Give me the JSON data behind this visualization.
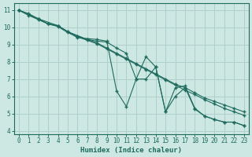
{
  "xlabel": "Humidex (Indice chaleur)",
  "bg_color": "#cde8e2",
  "grid_color": "#aecfca",
  "line_color": "#1e6b5e",
  "xlim": [
    -0.5,
    23.5
  ],
  "ylim": [
    3.8,
    11.4
  ],
  "xticks": [
    0,
    1,
    2,
    3,
    4,
    5,
    6,
    7,
    8,
    9,
    10,
    11,
    12,
    13,
    14,
    15,
    16,
    17,
    18,
    19,
    20,
    21,
    22,
    23
  ],
  "yticks": [
    4,
    5,
    6,
    7,
    8,
    9,
    10,
    11
  ],
  "lines": [
    {
      "x": [
        0,
        1,
        2,
        3,
        4,
        5,
        6,
        7,
        8,
        9,
        10,
        11,
        12,
        13,
        14,
        15,
        16,
        17,
        18,
        19,
        20,
        21,
        22,
        23
      ],
      "y": [
        11.0,
        10.75,
        10.5,
        10.2,
        10.1,
        9.75,
        9.5,
        9.3,
        9.1,
        8.8,
        8.5,
        8.2,
        7.9,
        7.6,
        7.3,
        7.0,
        6.7,
        6.5,
        6.2,
        5.9,
        5.7,
        5.5,
        5.3,
        5.1
      ]
    },
    {
      "x": [
        0,
        1,
        2,
        3,
        4,
        5,
        6,
        7,
        8,
        9,
        10,
        11,
        12,
        13,
        14,
        15,
        16,
        17,
        18,
        19,
        20,
        21,
        22,
        23
      ],
      "y": [
        11.0,
        10.7,
        10.45,
        10.2,
        10.05,
        9.7,
        9.45,
        9.25,
        9.05,
        8.75,
        8.45,
        8.15,
        7.85,
        7.55,
        7.25,
        6.95,
        6.65,
        6.35,
        6.1,
        5.8,
        5.55,
        5.3,
        5.1,
        4.9
      ]
    },
    {
      "x": [
        0,
        1,
        2,
        3,
        4,
        6,
        8,
        9,
        10,
        11,
        12,
        13,
        14,
        15,
        16,
        17,
        18,
        19,
        20,
        21,
        22,
        23
      ],
      "y": [
        11.0,
        10.8,
        10.5,
        10.2,
        10.1,
        9.4,
        9.3,
        9.2,
        6.3,
        5.4,
        7.0,
        8.3,
        7.7,
        5.1,
        6.5,
        6.6,
        5.3,
        4.85,
        4.65,
        4.5,
        4.5,
        4.3
      ]
    },
    {
      "x": [
        0,
        2,
        4,
        5,
        7,
        8,
        9,
        10,
        11,
        12,
        13,
        14,
        15,
        16,
        17,
        18,
        19,
        20,
        21,
        22,
        23
      ],
      "y": [
        11.0,
        10.5,
        10.1,
        9.75,
        9.3,
        9.2,
        9.15,
        8.8,
        8.5,
        7.0,
        7.0,
        7.7,
        5.1,
        6.0,
        6.5,
        5.25,
        4.85,
        4.65,
        4.5,
        4.5,
        4.3
      ]
    }
  ]
}
